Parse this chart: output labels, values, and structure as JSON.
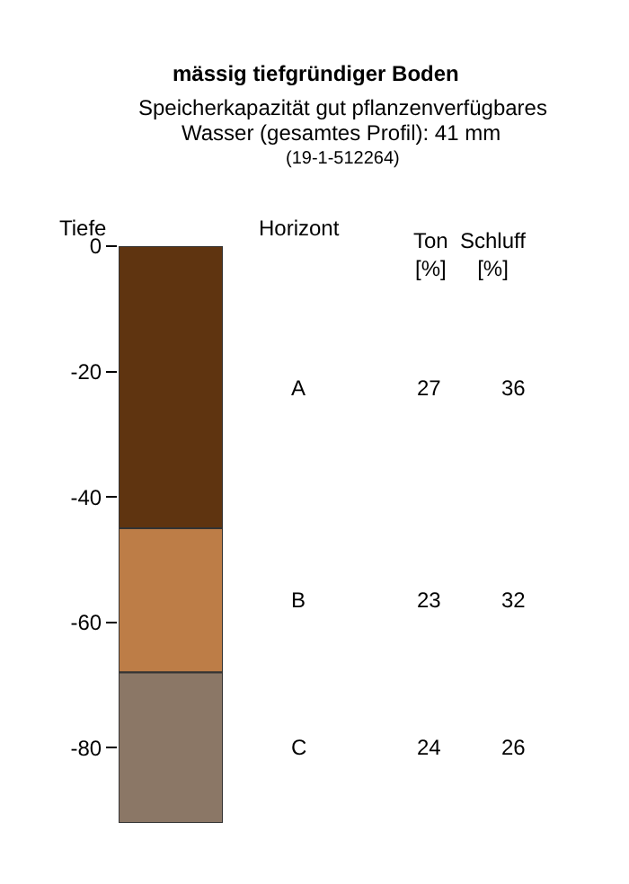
{
  "chart_data": {
    "type": "bar",
    "stacked": true,
    "title": "mässig tiefgründiger Boden",
    "subtitle": "Speicherkapazität gut pflanzenverfügbares\nWasser (gesamtes Profil): 41 mm\n(19-1-512264)",
    "ylabel": "Tiefe",
    "categories": [
      null
    ],
    "series": [
      {
        "name": "A",
        "color": "#5f3410",
        "values": [
          -45
        ]
      },
      {
        "name": "B",
        "color": "#bd7d47",
        "values": [
          -23
        ]
      },
      {
        "name": "C",
        "color": "#8b7766",
        "values": [
          -24
        ]
      }
    ],
    "annotations": [
      "Horizont",
      "Ton\n[%]",
      "Schluff\n[%]",
      "27",
      "36",
      "23",
      "32",
      "24",
      "26"
    ],
    "ylim": [
      -92,
      0
    ],
    "yticks": [
      0,
      -20,
      -40,
      -60,
      -80
    ],
    "legend": false,
    "tick_labels": "y"
  }
}
